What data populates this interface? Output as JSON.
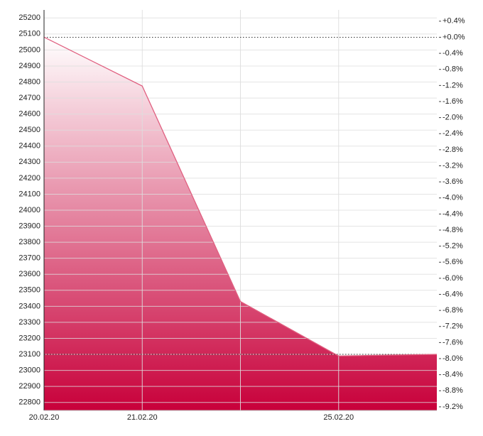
{
  "chart_data": {
    "type": "area",
    "categories": [
      "20.02.20",
      "21.02.20",
      null,
      "25.02.20",
      null
    ],
    "values": [
      25080,
      24775,
      23430,
      23090,
      23100
    ],
    "color": "#c8003a",
    "line_color": "#e06080",
    "ylim": [
      22750,
      25250
    ],
    "yticks": [
      22800,
      22900,
      23000,
      23100,
      23200,
      23300,
      23400,
      23500,
      23600,
      23700,
      23800,
      23900,
      24000,
      24100,
      24200,
      24300,
      24400,
      24500,
      24600,
      24700,
      24800,
      24900,
      25000,
      25100,
      25200
    ],
    "y2lim": [
      -9.29,
      0.68
    ],
    "y2ticks": [
      {
        "value": 0.4,
        "label": "+0.4%"
      },
      {
        "value": 0,
        "label": "+0.0%"
      },
      {
        "value": -0.4,
        "label": "-0.4%"
      },
      {
        "value": -0.8,
        "label": "-0.8%"
      },
      {
        "value": -1.2,
        "label": "-1.2%"
      },
      {
        "value": -1.6,
        "label": "-1.6%"
      },
      {
        "value": -2.0,
        "label": "-2.0%"
      },
      {
        "value": -2.4,
        "label": "-2.4%"
      },
      {
        "value": -2.8,
        "label": "-2.8%"
      },
      {
        "value": -3.2,
        "label": "-3.2%"
      },
      {
        "value": -3.6,
        "label": "-3.6%"
      },
      {
        "value": -4.0,
        "label": "-4.0%"
      },
      {
        "value": -4.4,
        "label": "-4.4%"
      },
      {
        "value": -4.8,
        "label": "-4.8%"
      },
      {
        "value": -5.2,
        "label": "-5.2%"
      },
      {
        "value": -5.6,
        "label": "-5.6%"
      },
      {
        "value": -6.0,
        "label": "-6.0%"
      },
      {
        "value": -6.4,
        "label": "-6.4%"
      },
      {
        "value": -6.8,
        "label": "-6.8%"
      },
      {
        "value": -7.2,
        "label": "-7.2%"
      },
      {
        "value": -7.6,
        "label": "-7.6%"
      },
      {
        "value": -8.0,
        "label": "-8.0%"
      },
      {
        "value": -8.4,
        "label": "-8.4%"
      },
      {
        "value": -8.8,
        "label": "-8.8%"
      },
      {
        "value": -9.2,
        "label": "-9.2%"
      }
    ],
    "grid": true
  }
}
